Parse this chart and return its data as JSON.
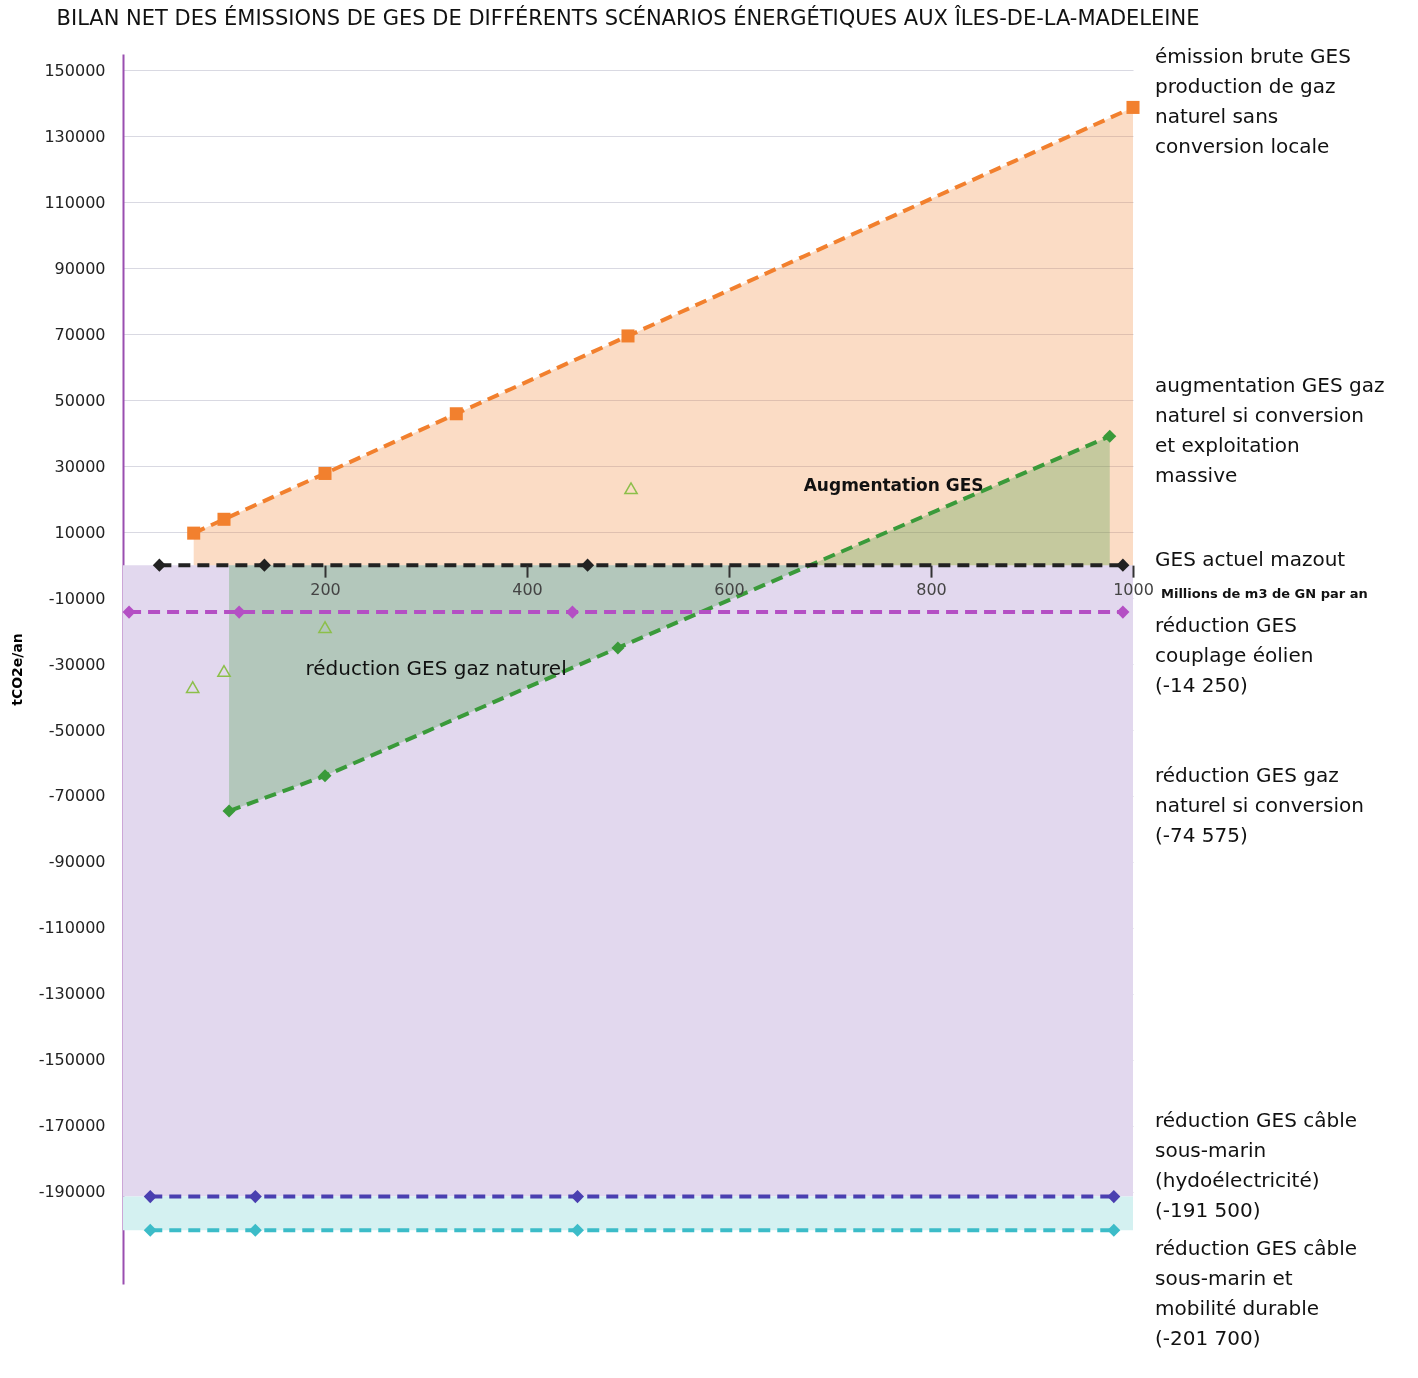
{
  "chart_data": {
    "type": "line",
    "title": "BILAN NET DES ÉMISSIONS DE GES DE DIFFÉRENTS SCÉNARIOS ÉNERGÉTIQUES AUX ÎLES-DE-LA-MADELEINE",
    "xlabel": "Millions de m3 de GN par an",
    "ylabel": "tCO2e/an",
    "xlim": [
      0,
      1000
    ],
    "xticks": [
      200,
      400,
      600,
      800,
      1000
    ],
    "ylim": [
      -218000,
      155000
    ],
    "yticks": [
      150000,
      130000,
      110000,
      90000,
      70000,
      50000,
      30000,
      10000,
      -10000,
      -30000,
      -50000,
      -70000,
      -90000,
      -110000,
      -130000,
      -150000,
      -170000,
      -190000
    ],
    "grid": "y",
    "line_style": "dashed",
    "bands": [
      {
        "axis": "y",
        "from": -191500,
        "to": 0,
        "color": "#e2d8ee"
      },
      {
        "axis": "y",
        "from": -201700,
        "to": -191500,
        "color": "#d4f1f1"
      }
    ],
    "series": [
      {
        "name": "émission brute GES production de gaz naturel sans conversion locale",
        "type": "area",
        "color": "#f2802e",
        "marker": "square",
        "x": [
          70,
          100,
          200,
          330,
          500,
          1000
        ],
        "values": [
          9700,
          13900,
          27800,
          45900,
          69500,
          138800
        ]
      },
      {
        "name": "augmentation GES gaz naturel si conversion et exploitation massive",
        "type": "area",
        "color": "#3a9a3a",
        "marker": "diamond",
        "x": [
          105,
          200,
          490,
          977
        ],
        "values": [
          -74575,
          -63900,
          -25100,
          39100
        ]
      },
      {
        "name": "GES actuel mazout",
        "color": "#222222",
        "marker": "diamond",
        "x": [
          36,
          140,
          460,
          990
        ],
        "values": [
          0,
          0,
          0,
          0
        ]
      },
      {
        "name": "réduction GES couplage éolien (-14 250)",
        "color": "#b44fc4",
        "marker": "diamond",
        "x": [
          6,
          115,
          445,
          990
        ],
        "values": [
          -14250,
          -14250,
          -14250,
          -14250
        ]
      },
      {
        "name": "réduction GES câble sous-marin (hydoélectricité) (-191 500)",
        "color": "#4a3fb0",
        "marker": "diamond",
        "x": [
          27,
          131,
          450,
          981
        ],
        "values": [
          -191500,
          -191500,
          -191500,
          -191500
        ]
      },
      {
        "name": "réduction GES câble sous-marin et mobilité durable (-201 700)",
        "color": "#3cbcc8",
        "marker": "diamond",
        "x": [
          27,
          131,
          450,
          981
        ],
        "values": [
          -201700,
          -201700,
          -201700,
          -201700
        ]
      },
      {
        "type": "scatter",
        "color": "#8cbf4a",
        "marker": "triangle",
        "x": [
          69,
          100,
          200,
          503
        ],
        "values": [
          -37000,
          -32100,
          -18800,
          23300
        ]
      }
    ],
    "annotations": [
      "Augmentation GES",
      "réduction GES gaz naturel",
      "réduction GES gaz naturel si conversion (-74 575)"
    ]
  }
}
